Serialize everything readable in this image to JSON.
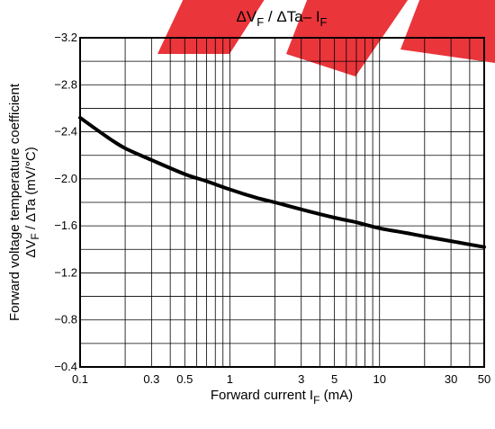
{
  "chart_data": {
    "type": "line",
    "title": {
      "main": "ΔV",
      "main_sub": "F",
      "rest": " / ΔTa– I",
      "rest_sub": "F"
    },
    "xlabel": {
      "main": "Forward current   I",
      "sub": "F",
      "tail": "   (mA)"
    },
    "ylabel_line1": "Forward voltage temperature coefficient",
    "ylabel_line2": {
      "main": "ΔV",
      "sub": "F",
      "tail": " / ΔTa  (mV/°C)"
    },
    "x_scale": "log",
    "xlim": [
      0.1,
      50
    ],
    "ylim": [
      -0.4,
      -3.2
    ],
    "grid": true,
    "x_ticks": [
      {
        "value": 0.1,
        "label": "0.1"
      },
      {
        "value": 0.3,
        "label": "0.3"
      },
      {
        "value": 0.5,
        "label": "0.5"
      },
      {
        "value": 1,
        "label": "1"
      },
      {
        "value": 3,
        "label": "3"
      },
      {
        "value": 5,
        "label": "5"
      },
      {
        "value": 10,
        "label": "10"
      },
      {
        "value": 30,
        "label": "30"
      },
      {
        "value": 50,
        "label": "50"
      }
    ],
    "y_ticks": [
      {
        "value": -3.2,
        "label": "−3.2"
      },
      {
        "value": -2.8,
        "label": "−2.8"
      },
      {
        "value": -2.4,
        "label": "−2.4"
      },
      {
        "value": -2.0,
        "label": "−2.0"
      },
      {
        "value": -1.6,
        "label": "−1.6"
      },
      {
        "value": -1.2,
        "label": "−1.2"
      },
      {
        "value": -0.8,
        "label": "−0.8"
      },
      {
        "value": -0.4,
        "label": "−0.4"
      }
    ],
    "series": [
      {
        "x": [
          0.1,
          0.15,
          0.2,
          0.3,
          0.5,
          0.7,
          1,
          1.5,
          2,
          3,
          5,
          7,
          10,
          15,
          20,
          30,
          50
        ],
        "y": [
          -2.52,
          -2.36,
          -2.26,
          -2.16,
          -2.04,
          -1.98,
          -1.91,
          -1.84,
          -1.8,
          -1.74,
          -1.67,
          -1.63,
          -1.58,
          -1.54,
          -1.51,
          -1.47,
          -1.42
        ]
      }
    ]
  }
}
